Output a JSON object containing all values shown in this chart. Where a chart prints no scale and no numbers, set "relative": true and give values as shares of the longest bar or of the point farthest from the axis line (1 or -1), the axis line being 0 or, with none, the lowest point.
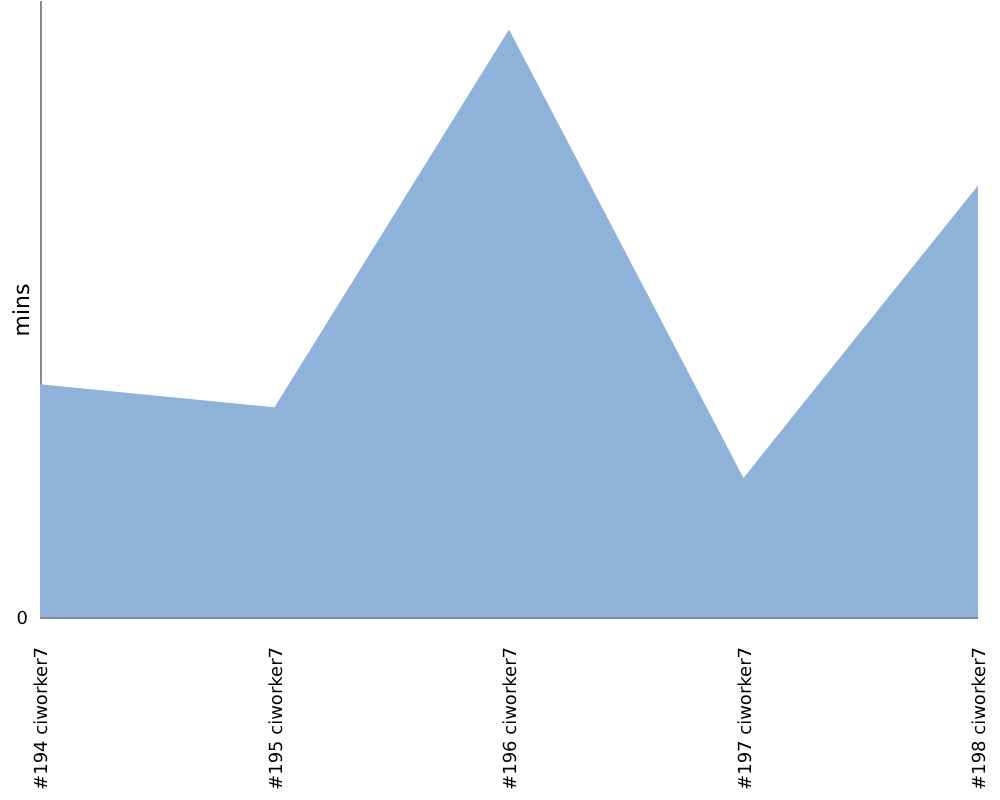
{
  "chart_data": {
    "type": "area",
    "relative": true,
    "ylabel": "mins",
    "annotations": [
      "0"
    ],
    "categories": [
      "#194 ciworker7",
      "#195 ciworker7",
      "#196 ciworker7",
      "#197 ciworker7",
      "#198 ciworker7"
    ],
    "series": [
      {
        "color": "#8fb2da",
        "values": [
          0.397,
          0.358,
          1.0,
          0.238,
          0.735
        ]
      }
    ],
    "grid": false
  }
}
